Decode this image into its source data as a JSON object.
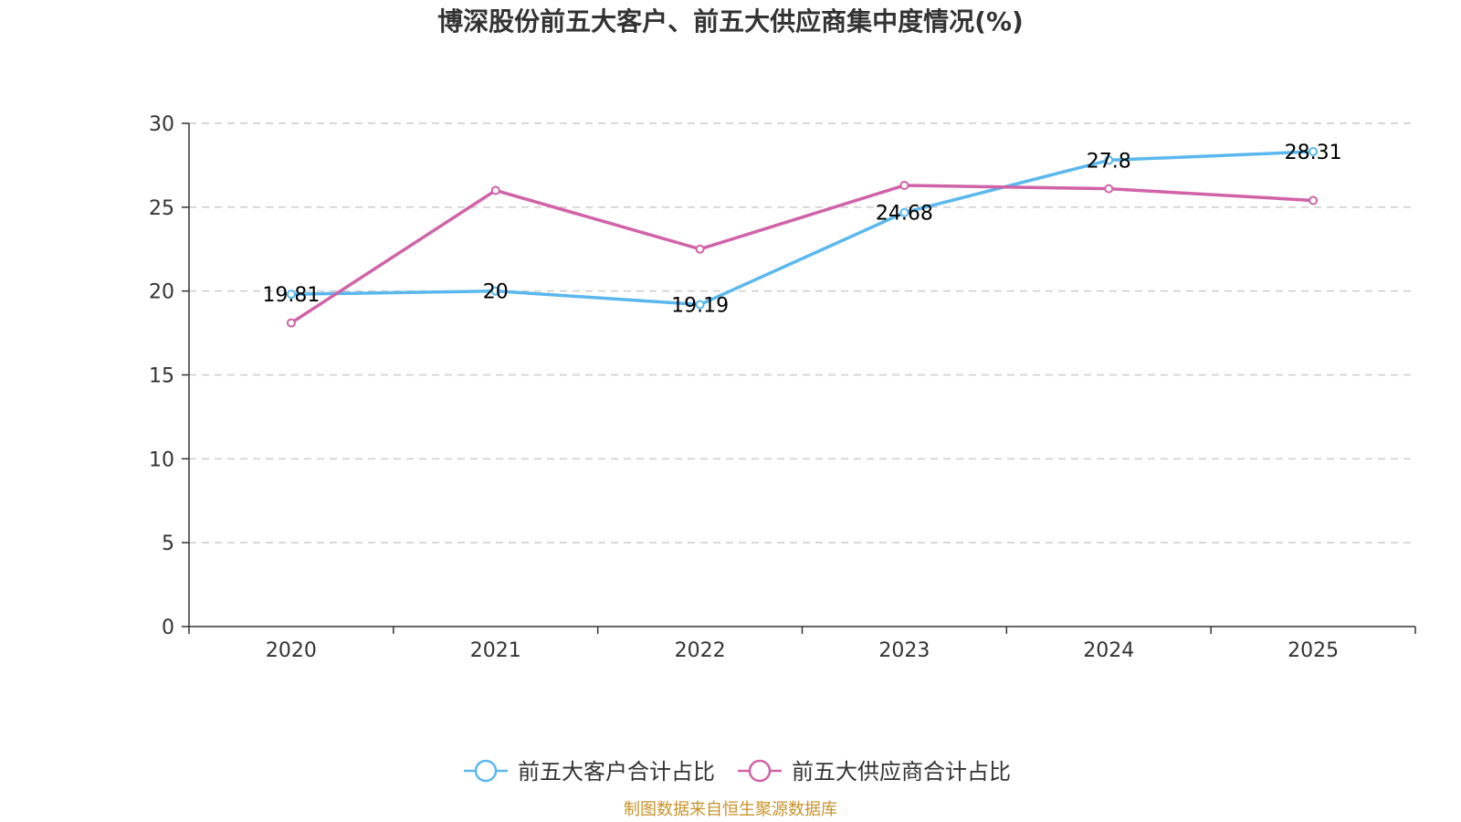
{
  "chart_data": {
    "type": "line",
    "title": "博深股份前五大客户、前五大供应商集中度情况(%)",
    "categories": [
      "2020",
      "2021",
      "2022",
      "2023",
      "2024",
      "2025"
    ],
    "ylim": [
      0,
      30
    ],
    "yticks": [
      0,
      5,
      10,
      15,
      20,
      25,
      30
    ],
    "grid": true,
    "legend_position": "bottom",
    "series": [
      {
        "name": "前五大客户合计占比",
        "color": "#5ab8ee",
        "values": [
          19.81,
          20,
          19.19,
          24.68,
          27.8,
          28.31
        ],
        "labels": [
          "19.81",
          "20",
          "19.19",
          "24.68",
          "27.8",
          "28.31"
        ]
      },
      {
        "name": "前五大供应商合计占比",
        "color": "#d063a8",
        "values": [
          18.1,
          26.0,
          22.5,
          26.3,
          26.1,
          25.4
        ],
        "labels": []
      }
    ],
    "source": "制图数据来自恒生聚源数据库"
  }
}
